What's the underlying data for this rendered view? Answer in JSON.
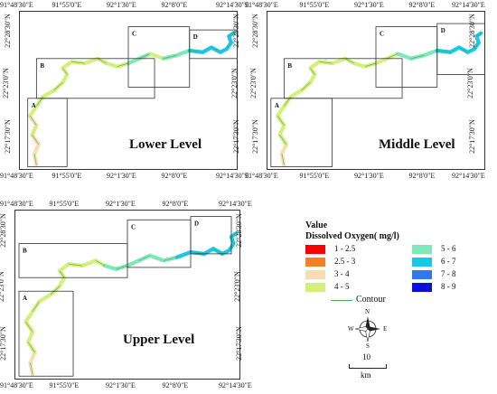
{
  "axes": {
    "x_ticks": [
      "91°48'30\"E",
      "91°55'0\"E",
      "92°1'30\"E",
      "92°8'0\"E",
      "92°14'30\"E"
    ],
    "y_ticks": [
      "22°17'30\"N",
      "22°23'0\"N",
      "22°28'30\"N"
    ]
  },
  "panels": [
    {
      "id": "lower",
      "title": "Lower Level",
      "insets": [
        "A",
        "B",
        "C",
        "D"
      ]
    },
    {
      "id": "middle",
      "title": "Middle Level",
      "insets": [
        "A",
        "B",
        "C",
        "D"
      ]
    },
    {
      "id": "upper",
      "title": "Upper Level",
      "insets": [
        "A",
        "B",
        "C",
        "D"
      ]
    }
  ],
  "legend": {
    "title": "Value",
    "subtitle": "Dissolved Oxygen( mg/l)",
    "classes": [
      {
        "label": "1 - 2.5",
        "color": "#ff0000"
      },
      {
        "label": "2.5 - 3",
        "color": "#f5821e"
      },
      {
        "label": "3 - 4",
        "color": "#f7ddb0"
      },
      {
        "label": "4 - 5",
        "color": "#d4f07a"
      },
      {
        "label": "5 - 6",
        "color": "#7fe8b8"
      },
      {
        "label": "6 - 7",
        "color": "#17c8ea"
      },
      {
        "label": "7 - 8",
        "color": "#3377ee"
      },
      {
        "label": "8 - 9",
        "color": "#0a10d8"
      }
    ],
    "contour_label": "Contour",
    "contour_color": "#4caf50"
  },
  "north_arrow": {
    "n": "N",
    "s": "S",
    "e": "E",
    "w": "W"
  },
  "scale_bar": {
    "value": "10",
    "unit": "km"
  }
}
